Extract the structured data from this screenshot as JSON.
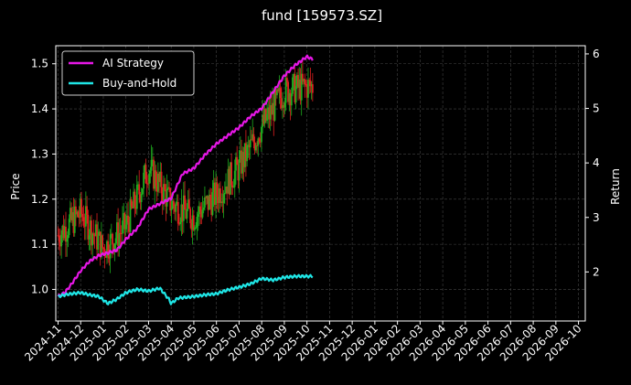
{
  "chart_data": {
    "type": "line",
    "title": "fund [159573.SZ]",
    "ylabel_left": "Price",
    "ylabel_right": "Return",
    "x_tick_labels": [
      "2024-11",
      "2024-12",
      "2025-01",
      "2025-02",
      "2025-03",
      "2025-04",
      "2025-05",
      "2025-06",
      "2025-07",
      "2025-08",
      "2025-09",
      "2025-10",
      "2025-11",
      "2025-12",
      "2026-01",
      "2026-02",
      "2026-03",
      "2026-04",
      "2026-05",
      "2026-06",
      "2026-07",
      "2026-08",
      "2026-09",
      "2026-10"
    ],
    "y_left_ticks": [
      1.0,
      1.1,
      1.2,
      1.3,
      1.4,
      1.5
    ],
    "y_left_ylim": [
      0.93,
      1.54
    ],
    "y_right_ticks": [
      2,
      3,
      4,
      5,
      6
    ],
    "y_right_ylim": [
      1.1,
      6.15
    ],
    "grid": true,
    "legend_position": "top-left",
    "colors": {
      "background": "#000000",
      "up": "#1fae1f",
      "down": "#e02020",
      "strategy": "#e617e6",
      "buyhold": "#1fe6e6",
      "grid": "#444444"
    },
    "candlesticks": {
      "month_index_anchors": [
        0,
        1,
        2,
        3,
        4,
        5,
        6,
        7,
        8,
        9,
        10,
        11,
        11.25
      ],
      "close_anchors": [
        1.12,
        1.17,
        1.09,
        1.14,
        1.27,
        1.19,
        1.16,
        1.21,
        1.27,
        1.36,
        1.44,
        1.45,
        1.45
      ],
      "volatility": 0.035
    },
    "series": [
      {
        "name": "AI Strategy",
        "x_months": [
          0,
          0.3,
          0.6,
          1.0,
          1.4,
          1.8,
          2.2,
          2.6,
          3.0,
          3.5,
          4.0,
          4.5,
          5.0,
          5.5,
          6.0,
          6.5,
          7.0,
          7.5,
          8.0,
          8.5,
          9.0,
          9.5,
          10.0,
          10.5,
          11.0,
          11.25
        ],
        "values": [
          1.55,
          1.62,
          1.78,
          2.02,
          2.2,
          2.3,
          2.35,
          2.4,
          2.6,
          2.8,
          3.15,
          3.25,
          3.35,
          3.8,
          3.9,
          4.15,
          4.35,
          4.5,
          4.65,
          4.85,
          5.0,
          5.3,
          5.6,
          5.8,
          5.95,
          5.9
        ]
      },
      {
        "name": "Buy-and-Hold",
        "x_months": [
          0,
          0.3,
          0.6,
          1.0,
          1.4,
          1.8,
          2.2,
          2.6,
          3.0,
          3.5,
          4.0,
          4.5,
          4.9,
          5.0,
          5.3,
          6.0,
          6.5,
          7.0,
          7.5,
          8.0,
          8.5,
          9.0,
          9.5,
          10.0,
          10.5,
          11.0,
          11.25
        ],
        "values": [
          1.55,
          1.58,
          1.6,
          1.62,
          1.58,
          1.55,
          1.42,
          1.5,
          1.62,
          1.68,
          1.65,
          1.7,
          1.5,
          1.42,
          1.52,
          1.55,
          1.58,
          1.6,
          1.67,
          1.72,
          1.78,
          1.88,
          1.85,
          1.9,
          1.92,
          1.92,
          1.92
        ]
      }
    ]
  }
}
